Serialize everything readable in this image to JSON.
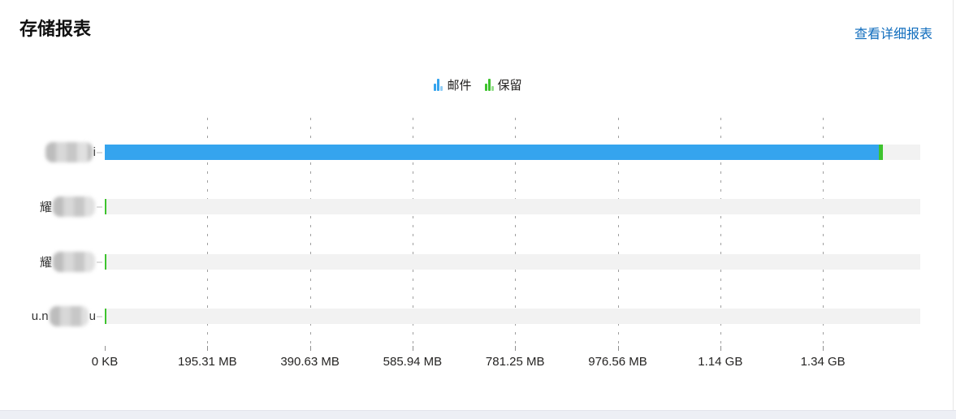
{
  "page": {
    "title": "存储报表",
    "detail_link_label": "查看详细报表",
    "link_color": "#0f6cbd",
    "card_background": "#ffffff",
    "page_strip_color": "#edeff5"
  },
  "legend": {
    "items": [
      {
        "icon": "bar-chart-icon",
        "label": "邮件",
        "color": "#35a4ee"
      },
      {
        "icon": "bar-chart-icon",
        "label": "保留",
        "color": "#3ec32e"
      }
    ]
  },
  "chart": {
    "track_color": "#f2f2f2",
    "rows": [
      {
        "label_prefix": "",
        "label_suffix": "i",
        "label_redacted": true,
        "mail_pct": 94.9,
        "retention_pct": 0.5
      },
      {
        "label_prefix": "耀",
        "label_suffix": "",
        "label_redacted": true,
        "mail_pct": 0,
        "retention_pct": 0.15
      },
      {
        "label_prefix": "耀",
        "label_suffix": "",
        "label_redacted": true,
        "mail_pct": 0,
        "retention_pct": 0.15
      },
      {
        "label_prefix": "u.n",
        "label_suffix": "u",
        "label_redacted": true,
        "mail_pct": 0,
        "retention_pct": 0.15
      }
    ],
    "axis": {
      "ticks": [
        {
          "label": "0 KB",
          "pct": 0,
          "gridline": false
        },
        {
          "label": "195.31 MB",
          "pct": 12.58,
          "gridline": true
        },
        {
          "label": "390.63 MB",
          "pct": 25.16,
          "gridline": true
        },
        {
          "label": "585.94 MB",
          "pct": 37.74,
          "gridline": true
        },
        {
          "label": "781.25 MB",
          "pct": 50.32,
          "gridline": true
        },
        {
          "label": "976.56 MB",
          "pct": 62.9,
          "gridline": true
        },
        {
          "label": "1.14 GB",
          "pct": 75.48,
          "gridline": true
        },
        {
          "label": "1.34 GB",
          "pct": 88.06,
          "gridline": true
        }
      ]
    }
  },
  "chart_data": {
    "type": "bar",
    "orientation": "horizontal",
    "title": "存储报表",
    "legend": [
      "邮件",
      "保留"
    ],
    "legend_position": "top-center",
    "categories": [
      "(blurred)i",
      "耀(blurred)",
      "耀(blurred)",
      "u.n(blurred)u"
    ],
    "series": [
      {
        "name": "邮件",
        "color": "#35a4ee",
        "values_mb": [
          1473,
          0,
          0,
          0
        ]
      },
      {
        "name": "保留",
        "color": "#3ec32e",
        "values_mb": [
          8,
          2,
          2,
          2
        ]
      }
    ],
    "x_axis": {
      "tick_labels": [
        "0 KB",
        "195.31 MB",
        "390.63 MB",
        "585.94 MB",
        "781.25 MB",
        "976.56 MB",
        "1.14 GB",
        "1.34 GB"
      ],
      "tick_values_mb": [
        0,
        195.31,
        390.63,
        585.94,
        781.25,
        976.56,
        1171.88,
        1367.19
      ],
      "max_mb": 1552
    },
    "gridlines": "dashed-vertical",
    "bar_track_background": "#f2f2f2"
  }
}
